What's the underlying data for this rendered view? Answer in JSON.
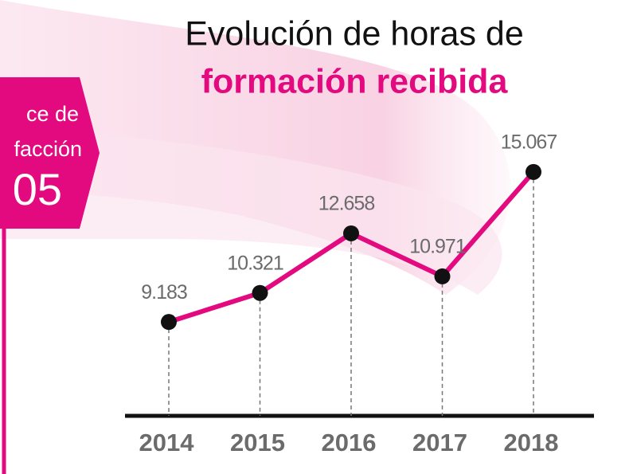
{
  "chart_data": {
    "type": "line",
    "title": "Evolución de horas de",
    "subtitle": "formación recibida",
    "categories": [
      "2014",
      "2015",
      "2016",
      "2017",
      "2018"
    ],
    "values": [
      9183,
      10321,
      12658,
      10971,
      15067
    ],
    "value_labels": [
      "9.183",
      "10.321",
      "12.658",
      "10.971",
      "15.067"
    ],
    "color": "#e3097f",
    "ylim": [
      5500,
      16500
    ]
  },
  "badge": {
    "lines": [
      "ce de",
      "facción",
      "05"
    ]
  }
}
